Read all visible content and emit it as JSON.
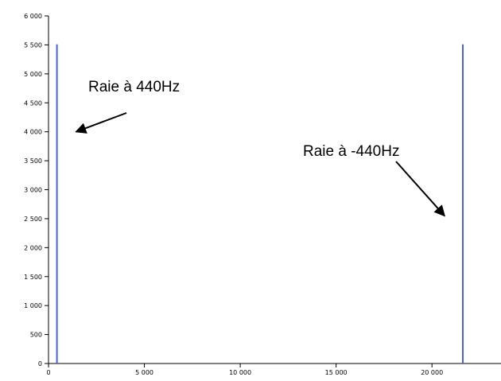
{
  "chart_data": {
    "type": "bar",
    "title": "",
    "xlabel": "",
    "ylabel": "",
    "xlim": [
      0,
      23600
    ],
    "ylim": [
      0,
      6000
    ],
    "x_ticks": [
      0,
      5000,
      10000,
      15000,
      20000
    ],
    "x_tick_labels": [
      "0",
      "5 000",
      "10 000",
      "15 000",
      "20 000"
    ],
    "y_ticks": [
      0,
      500,
      1000,
      1500,
      2000,
      2500,
      3000,
      3500,
      4000,
      4500,
      5000,
      5500,
      6000
    ],
    "y_tick_labels": [
      "0",
      "500",
      "1 000",
      "1 500",
      "2 000",
      "2 500",
      "3 000",
      "3 500",
      "4 000",
      "4 500",
      "5 000",
      "5 500",
      "6 000"
    ],
    "grid": false,
    "series": [
      {
        "x": [
          440,
          21610
        ],
        "values": [
          5510,
          5510
        ]
      }
    ],
    "annotations": [
      {
        "text": "Raie à 440Hz",
        "target": {
          "x": 440,
          "y": 4000
        }
      },
      {
        "text": "Raie à -440Hz",
        "target": {
          "x": 21610,
          "y": 2550
        }
      }
    ]
  },
  "colors": {
    "series": "#4a5fe0",
    "axis": "#000000"
  }
}
